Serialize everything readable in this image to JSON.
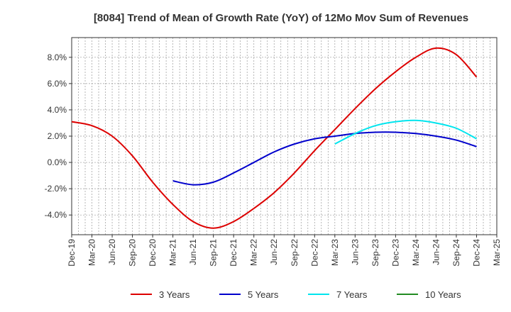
{
  "chart_data": {
    "type": "line",
    "title": "[8084]  Trend of Mean of Growth Rate (YoY) of 12Mo Mov Sum of Revenues",
    "xlabel": "",
    "ylabel": "",
    "ylim": [
      -5.5,
      9.5
    ],
    "yticks": [
      -4,
      -2,
      0,
      2,
      4,
      6,
      8
    ],
    "ytick_labels": [
      "-4.0%",
      "-2.0%",
      "0.0%",
      "2.0%",
      "4.0%",
      "6.0%",
      "8.0%"
    ],
    "categories": [
      "Dec-19",
      "Mar-20",
      "Jun-20",
      "Sep-20",
      "Dec-20",
      "Mar-21",
      "Jun-21",
      "Sep-21",
      "Dec-21",
      "Mar-22",
      "Jun-22",
      "Sep-22",
      "Dec-22",
      "Mar-23",
      "Jun-23",
      "Sep-23",
      "Dec-23",
      "Mar-24",
      "Jun-24",
      "Sep-24",
      "Dec-24",
      "Mar-25"
    ],
    "grid": true,
    "legend_position": "bottom",
    "series": [
      {
        "name": "3 Years",
        "color": "#dd0000",
        "values": [
          3.1,
          2.8,
          2.0,
          0.5,
          -1.5,
          -3.2,
          -4.5,
          -5.0,
          -4.5,
          -3.5,
          -2.3,
          -0.8,
          0.9,
          2.5,
          4.1,
          5.6,
          6.9,
          8.0,
          8.7,
          8.2,
          6.5,
          null
        ]
      },
      {
        "name": "5 Years",
        "color": "#0000cc",
        "values": [
          null,
          null,
          null,
          null,
          null,
          -1.4,
          -1.7,
          -1.5,
          -0.8,
          0.0,
          0.8,
          1.4,
          1.8,
          2.0,
          2.2,
          2.3,
          2.3,
          2.2,
          2.0,
          1.7,
          1.2,
          null
        ]
      },
      {
        "name": "7 Years",
        "color": "#00e5ee",
        "values": [
          null,
          null,
          null,
          null,
          null,
          null,
          null,
          null,
          null,
          null,
          null,
          null,
          null,
          1.4,
          2.2,
          2.8,
          3.1,
          3.2,
          3.0,
          2.6,
          1.8,
          null
        ]
      },
      {
        "name": "10 Years",
        "color": "#228b22",
        "values": [
          null,
          null,
          null,
          null,
          null,
          null,
          null,
          null,
          null,
          null,
          null,
          null,
          null,
          null,
          null,
          null,
          null,
          null,
          null,
          null,
          null,
          null
        ]
      }
    ]
  }
}
